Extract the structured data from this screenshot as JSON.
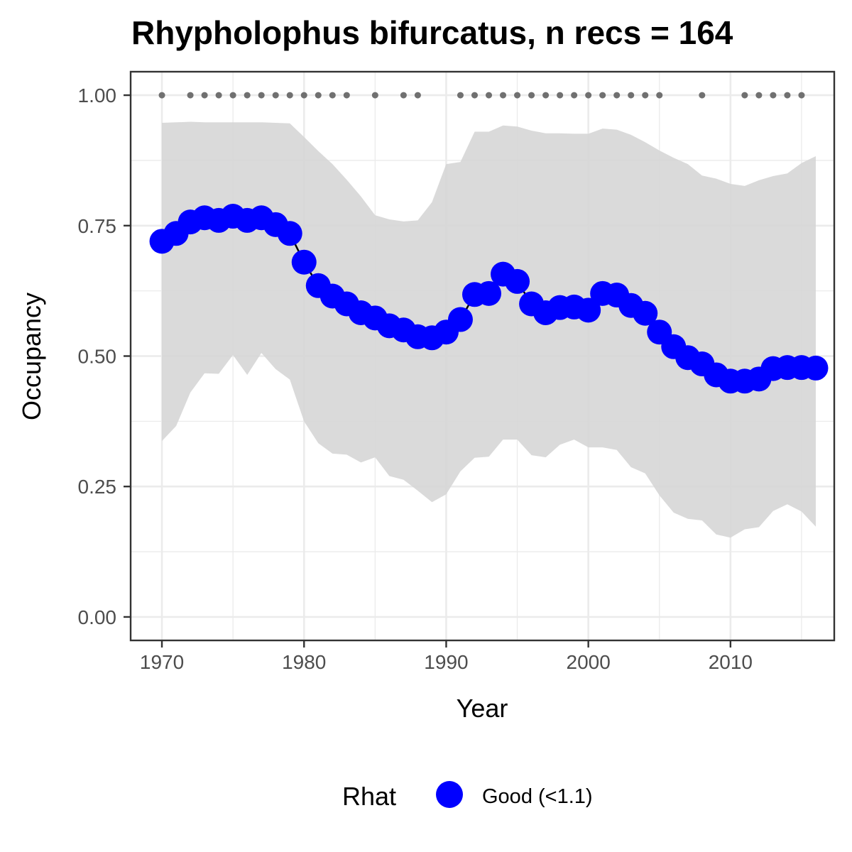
{
  "chart_data": {
    "type": "line",
    "title": "Rhypholophus bifurcatus, n recs = 164",
    "xlabel": "Year",
    "ylabel": "Occupancy",
    "xlim": [
      1967.8,
      2017.3
    ],
    "ylim": [
      -0.045,
      1.045
    ],
    "x_ticks": [
      1970,
      1980,
      1990,
      2000,
      2010
    ],
    "y_ticks": [
      0,
      0.25,
      0.5,
      0.75,
      1
    ],
    "x_tick_labels": [
      "1970",
      "1980",
      "1990",
      "2000",
      "2010"
    ],
    "y_tick_labels": [
      "0.00",
      "0.25",
      "0.50",
      "0.75",
      "1.00"
    ],
    "grid": true,
    "legend_position": "bottom",
    "legend": {
      "title": "Rhat",
      "entries": [
        {
          "label": "Good (<1.1)",
          "color": "#0000ff"
        }
      ]
    },
    "colors": {
      "points": "#0000ff",
      "ribbon": "#d6d6d6",
      "record_dots": "#707070",
      "grid": "#ebebeb"
    },
    "years": [
      1970,
      1971,
      1972,
      1973,
      1974,
      1975,
      1976,
      1977,
      1978,
      1979,
      1980,
      1981,
      1982,
      1983,
      1984,
      1985,
      1986,
      1987,
      1988,
      1989,
      1990,
      1991,
      1992,
      1993,
      1994,
      1995,
      1996,
      1997,
      1998,
      1999,
      2000,
      2001,
      2002,
      2003,
      2004,
      2005,
      2006,
      2007,
      2008,
      2009,
      2010,
      2011,
      2012,
      2013,
      2014,
      2015,
      2016
    ],
    "series": [
      {
        "name": "Good (<1.1)",
        "values": [
          0.72,
          0.735,
          0.757,
          0.765,
          0.76,
          0.768,
          0.76,
          0.765,
          0.752,
          0.735,
          0.68,
          0.635,
          0.615,
          0.6,
          0.583,
          0.573,
          0.558,
          0.55,
          0.537,
          0.535,
          0.546,
          0.57,
          0.618,
          0.62,
          0.657,
          0.643,
          0.6,
          0.583,
          0.593,
          0.594,
          0.588,
          0.62,
          0.617,
          0.597,
          0.582,
          0.546,
          0.518,
          0.497,
          0.485,
          0.464,
          0.452,
          0.452,
          0.456,
          0.476,
          0.478,
          0.478,
          0.477
        ]
      }
    ],
    "ribbon_lower": [
      0.337,
      0.366,
      0.43,
      0.467,
      0.466,
      0.502,
      0.464,
      0.506,
      0.475,
      0.455,
      0.375,
      0.333,
      0.313,
      0.311,
      0.296,
      0.306,
      0.27,
      0.263,
      0.242,
      0.22,
      0.235,
      0.279,
      0.305,
      0.307,
      0.34,
      0.34,
      0.31,
      0.306,
      0.33,
      0.34,
      0.325,
      0.325,
      0.32,
      0.287,
      0.275,
      0.233,
      0.2,
      0.188,
      0.185,
      0.158,
      0.152,
      0.168,
      0.172,
      0.203,
      0.216,
      0.202,
      0.173
    ],
    "ribbon_upper": [
      0.947,
      0.948,
      0.949,
      0.948,
      0.948,
      0.948,
      0.948,
      0.948,
      0.947,
      0.946,
      0.92,
      0.893,
      0.868,
      0.838,
      0.806,
      0.77,
      0.762,
      0.758,
      0.76,
      0.795,
      0.868,
      0.872,
      0.93,
      0.93,
      0.942,
      0.94,
      0.932,
      0.927,
      0.927,
      0.926,
      0.926,
      0.936,
      0.934,
      0.924,
      0.91,
      0.894,
      0.88,
      0.868,
      0.846,
      0.84,
      0.83,
      0.826,
      0.837,
      0.845,
      0.85,
      0.87,
      0.883
    ],
    "record_years": [
      1970,
      1972,
      1973,
      1974,
      1975,
      1976,
      1977,
      1978,
      1979,
      1980,
      1981,
      1982,
      1983,
      1985,
      1987,
      1988,
      1991,
      1992,
      1993,
      1994,
      1995,
      1996,
      1997,
      1998,
      1999,
      2000,
      2001,
      2002,
      2003,
      2004,
      2005,
      2008,
      2011,
      2012,
      2013,
      2014,
      2015
    ],
    "record_value": 1.0
  }
}
